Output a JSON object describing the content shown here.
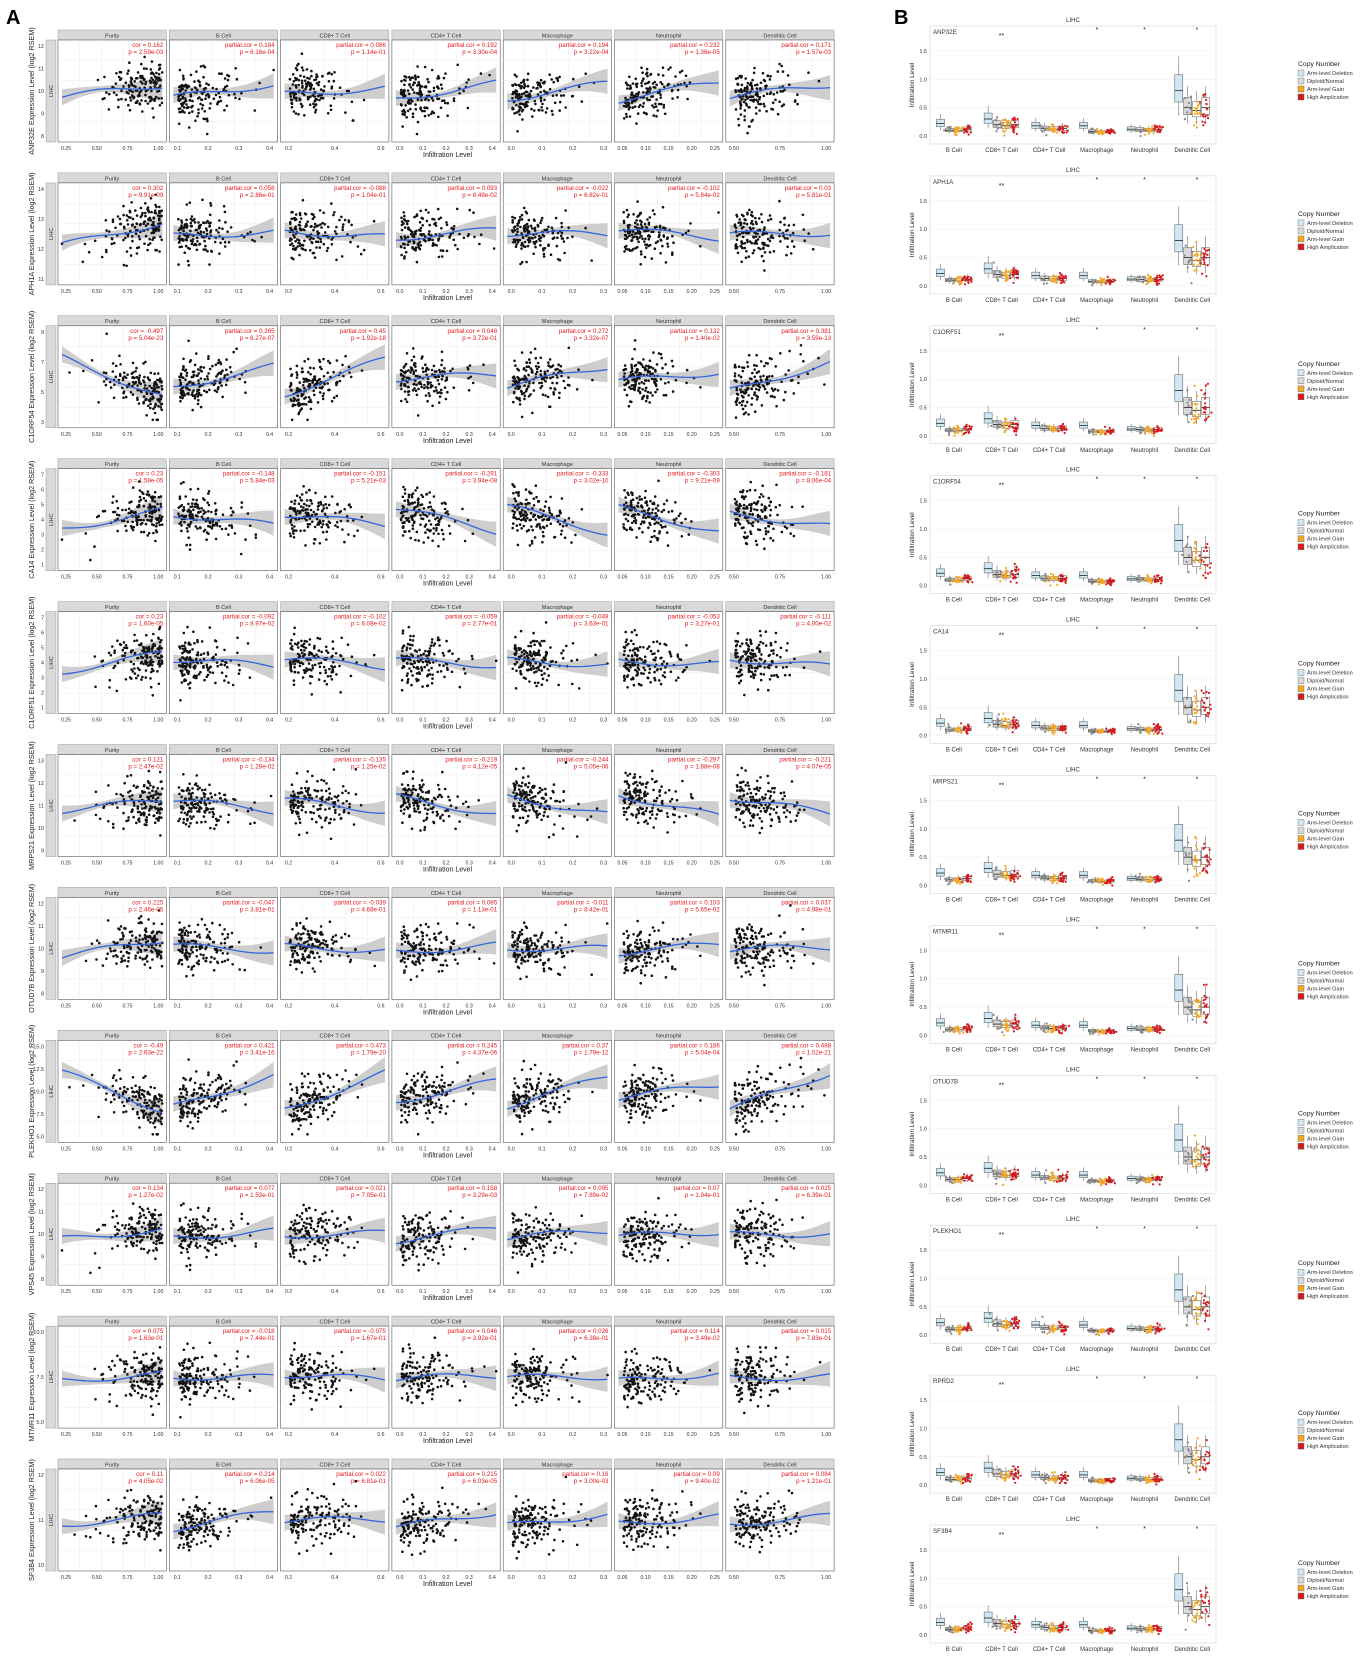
{
  "figure": {
    "panel_a_label": "A",
    "panel_b_label": "B"
  },
  "panel_a": {
    "cancer_label": "LIHC",
    "x_axis_title": "Infiltration Level",
    "ylabel_suffix": " Expression Level (log2 RSEM)",
    "columns": [
      "Purity",
      "B Cell",
      "CD8+ T Cell",
      "CD4+ T Cell",
      "Macrophage",
      "Neutrophil",
      "Dendritic Cell"
    ],
    "x_ticks": [
      [
        "0.25",
        "0.50",
        "0.75",
        "1.00"
      ],
      [
        "0.1",
        "0.2",
        "0.3",
        "0.4"
      ],
      [
        "0.2",
        "0.4",
        "0.6"
      ],
      [
        "0.0",
        "0.1",
        "0.2",
        "0.3",
        "0.4"
      ],
      [
        "0.0",
        "0.1",
        "0.2",
        "0.3"
      ],
      [
        "0.05",
        "0.10",
        "0.15",
        "0.20",
        "0.25"
      ],
      [
        "0.50",
        "0.75",
        "1.00"
      ]
    ],
    "x_ticks_neutrophil_alt": [
      "0.05",
      "0.10",
      "0.15",
      "0.20",
      "0.25"
    ],
    "colors": {
      "points": "#111111",
      "fit": "#3366dd",
      "band": "#bdbdbd",
      "stats": "#e41a1c",
      "strip": "#d9d9d9"
    }
  },
  "chart_data": {
    "type": "scatter",
    "title": "",
    "genes": [
      {
        "gene": "ANP32E",
        "y_ticks": [
          "8",
          "9",
          "10",
          "11",
          "12"
        ],
        "stats": [
          {
            "label": "cor = 0.162",
            "p": "p = 2.59e-03"
          },
          {
            "label": "partial.cor = 0.184",
            "p": "p = 6.16e-04"
          },
          {
            "label": "partial.cor = 0.086",
            "p": "p = 1.14e-01"
          },
          {
            "label": "partial.cor = 0.192",
            "p": "p = 3.30e-04"
          },
          {
            "label": "partial.cor = 0.194",
            "p": "p = 3.22e-04"
          },
          {
            "label": "partial.cor = 0.232",
            "p": "p = 1.36e-05"
          },
          {
            "label": "partial.cor = 0.171",
            "p": "p = 1.57e-03"
          }
        ]
      },
      {
        "gene": "APH1A",
        "y_ticks": [
          "11",
          "12",
          "13",
          "14"
        ],
        "stats": [
          {
            "label": "cor = 0.302",
            "p": "p = 9.91e-09"
          },
          {
            "label": "partial.cor = 0.058",
            "p": "p = 2.86e-01"
          },
          {
            "label": "partial.cor = -0.088",
            "p": "p = 1.04e-01"
          },
          {
            "label": "partial.cor = 0.093",
            "p": "p = 8.49e-02"
          },
          {
            "label": "partial.cor = -0.022",
            "p": "p = 6.82e-01"
          },
          {
            "label": "partial.cor = -0.102",
            "p": "p = 5.84e-02"
          },
          {
            "label": "partial.cor = 0.03",
            "p": "p = 5.81e-01"
          }
        ]
      },
      {
        "gene": "C1ORF54",
        "y_ticks": [
          "3",
          "5",
          "7",
          "9"
        ],
        "stats": [
          {
            "label": "cor = -0.497",
            "p": "p = 5.04e-23"
          },
          {
            "label": "partial.cor = 0.265",
            "p": "p = 6.27e-07"
          },
          {
            "label": "partial.cor = 0.45",
            "p": "p = 1.92e-18"
          },
          {
            "label": "partial.cor = 0.048",
            "p": "p = 3.72e-01"
          },
          {
            "label": "partial.cor = 0.272",
            "p": "p = 3.32e-07"
          },
          {
            "label": "partial.cor = 0.132",
            "p": "p = 1.40e-02"
          },
          {
            "label": "partial.cor = 0.381",
            "p": "p = 3.59e-13"
          }
        ]
      },
      {
        "gene": "CA14",
        "y_ticks": [
          "1",
          "2",
          "3",
          "4",
          "5",
          "6",
          "7"
        ],
        "stats": [
          {
            "label": "cor = 0.23",
            "p": "p = 1.58e-05"
          },
          {
            "label": "partial.cor = -0.148",
            "p": "p = 5.84e-03"
          },
          {
            "label": "partial.cor = -0.151",
            "p": "p = 5.21e-03"
          },
          {
            "label": "partial.cor = -0.291",
            "p": "p = 3.94e-08"
          },
          {
            "label": "partial.cor = -0.333",
            "p": "p = 3.02e-10"
          },
          {
            "label": "partial.cor = -0.303",
            "p": "p = 9.21e-09"
          },
          {
            "label": "partial.cor = -0.181",
            "p": "p = 8.06e-04"
          }
        ]
      },
      {
        "gene": "C1ORF51",
        "y_ticks": [
          "1",
          "2",
          "3",
          "4",
          "5",
          "6",
          "7"
        ],
        "stats": [
          {
            "label": "cor = 0.23",
            "p": "p = 1.60e-05"
          },
          {
            "label": "partial.cor = -0.092",
            "p": "p = 8.97e-02"
          },
          {
            "label": "partial.cor = -0.102",
            "p": "p = 6.08e-02"
          },
          {
            "label": "partial.cor = -0.059",
            "p": "p = 2.77e-01"
          },
          {
            "label": "partial.cor = -0.049",
            "p": "p = 3.63e-01"
          },
          {
            "label": "partial.cor = -0.053",
            "p": "p = 3.27e-01"
          },
          {
            "label": "partial.cor = -0.111",
            "p": "p = 4.00e-02"
          }
        ]
      },
      {
        "gene": "MRPS21",
        "y_ticks": [
          "9",
          "10",
          "11",
          "12",
          "13"
        ],
        "stats": [
          {
            "label": "cor = 0.121",
            "p": "p = 2.47e-02"
          },
          {
            "label": "partial.cor = -0.134",
            "p": "p = 1.28e-02"
          },
          {
            "label": "partial.cor = -0.135",
            "p": "p = 1.25e-02"
          },
          {
            "label": "partial.cor = -0.219",
            "p": "p = 4.12e-05"
          },
          {
            "label": "partial.cor = -0.244",
            "p": "p = 5.05e-06"
          },
          {
            "label": "partial.cor = -0.297",
            "p": "p = 1.88e-08"
          },
          {
            "label": "partial.cor = -0.221",
            "p": "p = 4.07e-05"
          }
        ]
      },
      {
        "gene": "OTUD7B",
        "y_ticks": [
          "8",
          "9",
          "10",
          "11",
          "12"
        ],
        "stats": [
          {
            "label": "cor = 0.225",
            "p": "p = 2.46e-05"
          },
          {
            "label": "partial.cor = -0.047",
            "p": "p = 3.81e-01"
          },
          {
            "label": "partial.cor = -0.039",
            "p": "p = 4.68e-01"
          },
          {
            "label": "partial.cor = 0.085",
            "p": "p = 1.13e-01"
          },
          {
            "label": "partial.cor = -0.011",
            "p": "p = 8.42e-01"
          },
          {
            "label": "partial.cor = 0.103",
            "p": "p = 5.65e-02"
          },
          {
            "label": "partial.cor = 0.037",
            "p": "p = 4.98e-01"
          }
        ]
      },
      {
        "gene": "PLEKHO1",
        "y_ticks": [
          "5.0",
          "7.5",
          "10.0",
          "12.5",
          "15.0"
        ],
        "stats": [
          {
            "label": "cor = -0.49",
            "p": "p = 2.63e-22"
          },
          {
            "label": "partial.cor = 0.421",
            "p": "p = 3.41e-16"
          },
          {
            "label": "partial.cor = 0.473",
            "p": "p = 1.79e-20"
          },
          {
            "label": "partial.cor = 0.245",
            "p": "p = 4.37e-06"
          },
          {
            "label": "partial.cor = 0.37",
            "p": "p = 1.79e-12"
          },
          {
            "label": "partial.cor = 0.186",
            "p": "p = 5.04e-04"
          },
          {
            "label": "partial.cor = 0.488",
            "p": "p = 1.02e-21"
          }
        ]
      },
      {
        "gene": "VPS45",
        "y_ticks": [
          "8",
          "9",
          "10",
          "11",
          "12"
        ],
        "stats": [
          {
            "label": "cor = 0.134",
            "p": "p = 1.27e-02"
          },
          {
            "label": "partial.cor = 0.077",
            "p": "p = 1.53e-01"
          },
          {
            "label": "partial.cor = 0.021",
            "p": "p = 7.05e-01"
          },
          {
            "label": "partial.cor = 0.158",
            "p": "p = 3.29e-03"
          },
          {
            "label": "partial.cor = 0.095",
            "p": "p = 7.89e-02"
          },
          {
            "label": "partial.cor = 0.07",
            "p": "p = 1.94e-01"
          },
          {
            "label": "partial.cor = 0.025",
            "p": "p = 6.39e-01"
          }
        ]
      },
      {
        "gene": "MTMR11",
        "y_ticks": [
          "5.0",
          "7.5",
          "10.0"
        ],
        "stats": [
          {
            "label": "cor = 0.075",
            "p": "p = 1.63e-01"
          },
          {
            "label": "partial.cor = -0.018",
            "p": "p = 7.44e-01"
          },
          {
            "label": "partial.cor = -0.075",
            "p": "p = 1.67e-01"
          },
          {
            "label": "partial.cor = 0.046",
            "p": "p = 3.92e-01"
          },
          {
            "label": "partial.cor = 0.026",
            "p": "p = 6.38e-01"
          },
          {
            "label": "partial.cor = 0.114",
            "p": "p = 3.49e-02"
          },
          {
            "label": "partial.cor = 0.015",
            "p": "p = 7.83e-01"
          }
        ]
      },
      {
        "gene": "SF3B4",
        "y_ticks": [
          "10",
          "11",
          "12"
        ],
        "stats": [
          {
            "label": "cor = 0.11",
            "p": "p = 4.05e-02"
          },
          {
            "label": "partial.cor = 0.214",
            "p": "p = 6.06e-05"
          },
          {
            "label": "partial.cor = 0.022",
            "p": "p = 6.81e-01"
          },
          {
            "label": "partial.cor = 0.215",
            "p": "p = 6.03e-05"
          },
          {
            "label": "partial.cor = 0.16",
            "p": "p = 3.00e-03"
          },
          {
            "label": "partial.cor = 0.09",
            "p": "p = 9.40e-02"
          },
          {
            "label": "partial.cor = 0.084",
            "p": "p = 1.21e-01"
          }
        ]
      }
    ]
  },
  "panel_b": {
    "title": "LIHC",
    "y_axis_title": "Infiltration Level",
    "y_ticks": [
      "0.0",
      "0.5",
      "1.0",
      "1.5"
    ],
    "cell_types": [
      "B Cell",
      "CD8+ T Cell",
      "CD4+ T Cell",
      "Macrophage",
      "Neutrophil",
      "Dendritic Cell"
    ],
    "legend_title": "Copy Number",
    "legend_items": [
      {
        "label": "Arm-level Deletion",
        "color": "#cfe8f3"
      },
      {
        "label": "Diploid/Normal",
        "color": "#d9d9d9"
      },
      {
        "label": "Arm-level Gain",
        "color": "#f5a623"
      },
      {
        "label": "High Amplication",
        "color": "#d7191c"
      }
    ],
    "significance_markers": {
      "cd8": "**",
      "macrophage": "*",
      "neutrophil": "*",
      "dendritic": "*"
    },
    "genes": [
      "ANP32E",
      "APH1A",
      "C1ORF51",
      "C1ORF54",
      "CA14",
      "MRPS21",
      "MTMR11",
      "OTUD7B",
      "PLEKHO1",
      "RPRD2",
      "SF3B4"
    ],
    "box_medians": [
      [
        0.22,
        0.1,
        0.1,
        0.12
      ],
      [
        0.3,
        0.2,
        0.18,
        0.2
      ],
      [
        0.18,
        0.13,
        0.12,
        0.13
      ],
      [
        0.18,
        0.08,
        0.07,
        0.08
      ],
      [
        0.12,
        0.11,
        0.1,
        0.11
      ],
      [
        0.8,
        0.5,
        0.45,
        0.5
      ]
    ]
  }
}
